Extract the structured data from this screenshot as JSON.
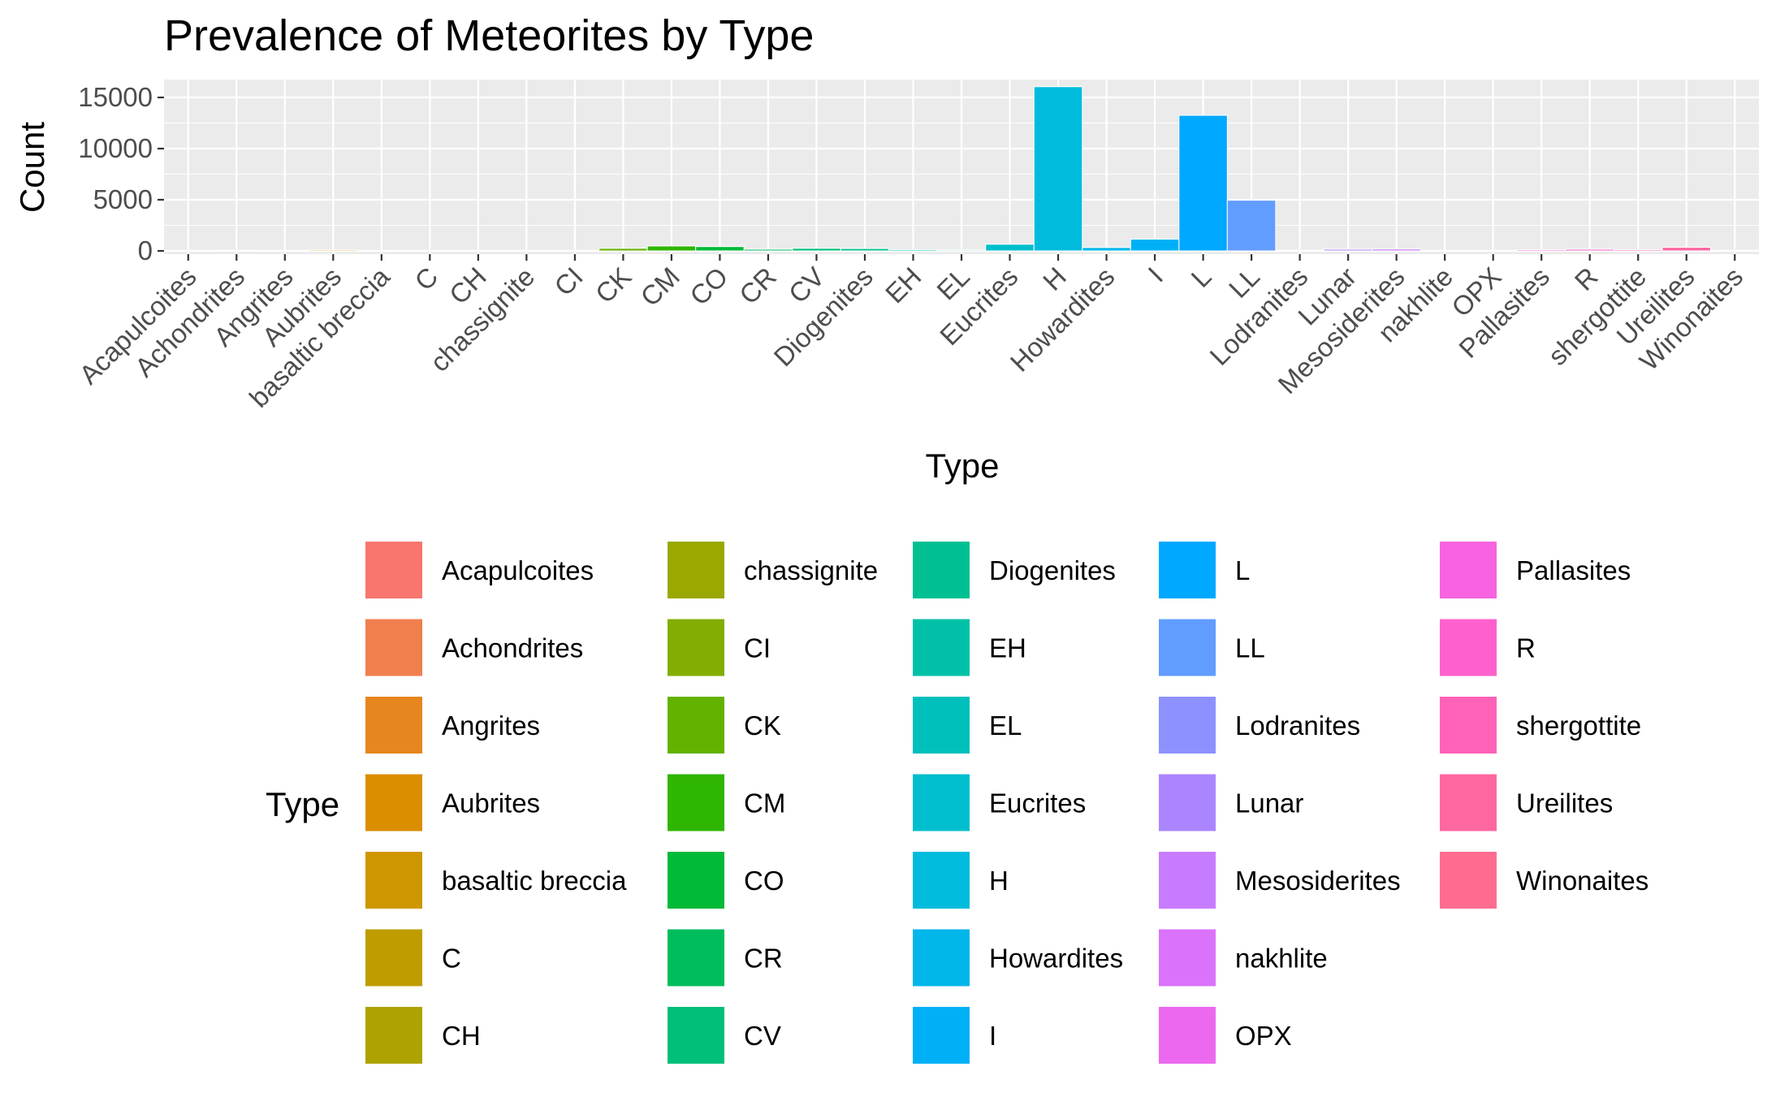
{
  "chart_data": {
    "type": "bar",
    "title": "Prevalence of Meteorites by Type",
    "xlabel": "Type",
    "ylabel": "Count",
    "ylim": [
      0,
      16500
    ],
    "yticks": [
      0,
      5000,
      10000,
      15000
    ],
    "ytick_labels": [
      "0",
      "5000",
      "10000",
      "15000"
    ],
    "grid": true,
    "legend_position": "bottom",
    "legend_title": "Type",
    "categories": [
      "Acapulcoites",
      "Achondrites",
      "Angrites",
      "Aubrites",
      "basaltic breccia",
      "C",
      "CH",
      "chassignite",
      "CI",
      "CK",
      "CM",
      "CO",
      "CR",
      "CV",
      "Diogenites",
      "EH",
      "EL",
      "Eucrites",
      "H",
      "Howardites",
      "I",
      "L",
      "LL",
      "Lodranites",
      "Lunar",
      "Mesosiderites",
      "nakhlite",
      "OPX",
      "Pallasites",
      "R",
      "shergottite",
      "Ureilites",
      "Winonaites"
    ],
    "values": [
      50,
      60,
      30,
      100,
      15,
      30,
      30,
      5,
      10,
      250,
      480,
      420,
      160,
      250,
      230,
      120,
      90,
      650,
      16050,
      330,
      1150,
      13250,
      4950,
      60,
      160,
      180,
      10,
      10,
      120,
      160,
      120,
      350,
      60
    ],
    "colors": [
      "#F8766D",
      "#F07F4E",
      "#E6861E",
      "#DB8E00",
      "#CE9600",
      "#BF9D00",
      "#AEA200",
      "#9AA800",
      "#83AD00",
      "#64B200",
      "#2EB600",
      "#00BA38",
      "#00BD5C",
      "#00BF78",
      "#00C091",
      "#00C1A7",
      "#00C0BB",
      "#00BECD",
      "#00BBDC",
      "#00B6EB",
      "#00B0F6",
      "#00A8FF",
      "#619CFF",
      "#8D91FF",
      "#AB85FF",
      "#C77CFF",
      "#DB72FB",
      "#EC69EF",
      "#F763E0",
      "#FF61CC",
      "#FF62B7",
      "#FF67A1",
      "#FF6C90"
    ]
  }
}
